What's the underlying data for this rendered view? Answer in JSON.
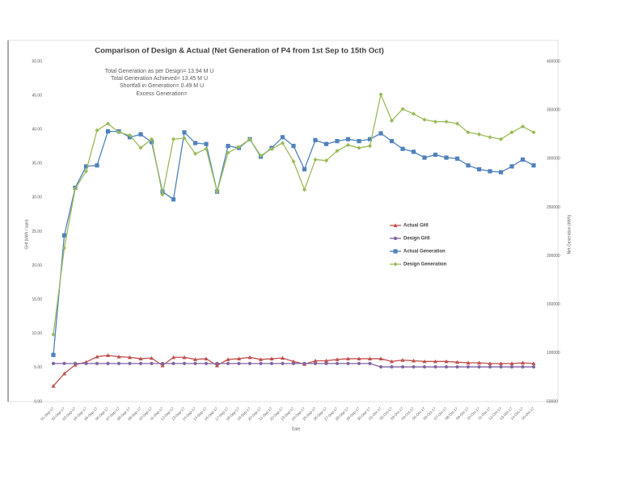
{
  "chart_data": {
    "type": "line",
    "title": "Comparison of Design & Actual (Net Generation of P4 from 1st Sep to 15th Oct)",
    "annotations": [
      "Total Generation as per Design= 13.94 M U",
      "Total Generation Achieved= 13.45 M U",
      "Shortfall in Generation= 0.49 M U",
      "Excess Generation="
    ],
    "x_label": "Date",
    "y_label": "GHI (kWh / sqm)",
    "y2_label": "Net Generation (kWh)",
    "categories": [
      "01-Sep-17",
      "02-Sep-17",
      "03-Sep-17",
      "04-Sep-17",
      "05-Sep-17",
      "06-Sep-17",
      "07-Sep-17",
      "08-Sep-17",
      "09-Sep-17",
      "10-Sep-17",
      "11-Sep-17",
      "12-Sep-17",
      "13-Sep-17",
      "14-Sep-17",
      "15-Sep-17",
      "16-Sep-17",
      "17-Sep-17",
      "18-Sep-17",
      "19-Sep-17",
      "20-Sep-17",
      "21-Sep-17",
      "22-Sep-17",
      "23-Sep-17",
      "24-Sep-17",
      "25-Sep-17",
      "26-Sep-17",
      "27-Sep-17",
      "28-Sep-17",
      "29-Sep-17",
      "30-Sep-17",
      "01-Oct-17",
      "02-Oct-17",
      "03-Oct-17",
      "04-Oct-17",
      "05-Oct-17",
      "06-Oct-17",
      "07-Oct-17",
      "08-Oct-17",
      "09-Oct-17",
      "10-Oct-17",
      "11-Oct-17",
      "12-Oct-17",
      "13-Oct-17",
      "14-Oct-17",
      "15-Oct-17"
    ],
    "ylim": [
      0,
      50
    ],
    "yticks": [
      {
        "value": 0,
        "label": "0.00"
      },
      {
        "value": 5,
        "label": "5.00"
      },
      {
        "value": 10,
        "label": "10.00"
      },
      {
        "value": 15,
        "label": "15.00"
      },
      {
        "value": 20,
        "label": "20.00"
      },
      {
        "value": 25,
        "label": "25.00"
      },
      {
        "value": 30,
        "label": "30.00"
      },
      {
        "value": 35,
        "label": "35.00"
      },
      {
        "value": 40,
        "label": "40.00"
      },
      {
        "value": 45,
        "label": "45.00"
      },
      {
        "value": 50,
        "label": "50.00"
      }
    ],
    "y2lim": [
      50000,
      400000
    ],
    "y2ticks": [
      50000,
      100000,
      150000,
      200000,
      250000,
      300000,
      350000,
      400000
    ],
    "grid": false,
    "legend_position": "right",
    "series": [
      {
        "name": "Actual GHI",
        "color": "#c0504d",
        "marker": "triangle",
        "axis": "y",
        "values": [
          2.3,
          4.1,
          5.4,
          5.8,
          6.6,
          6.8,
          6.6,
          6.5,
          6.3,
          6.4,
          5.3,
          6.5,
          6.5,
          6.2,
          6.3,
          5.3,
          6.2,
          6.3,
          6.5,
          6.2,
          6.3,
          6.4,
          5.9,
          5.5,
          6.0,
          6.0,
          6.2,
          6.3,
          6.3,
          6.3,
          6.3,
          5.9,
          6.1,
          6.0,
          5.9,
          5.9,
          5.9,
          5.8,
          5.7,
          5.7,
          5.6,
          5.6,
          5.6,
          5.7,
          5.6
        ]
      },
      {
        "name": "Design GHI",
        "color": "#8064a2",
        "marker": "circle",
        "axis": "y",
        "values": [
          5.6,
          5.6,
          5.6,
          5.6,
          5.6,
          5.6,
          5.6,
          5.6,
          5.6,
          5.6,
          5.6,
          5.6,
          5.6,
          5.6,
          5.6,
          5.6,
          5.6,
          5.6,
          5.6,
          5.6,
          5.6,
          5.6,
          5.6,
          5.6,
          5.6,
          5.6,
          5.6,
          5.6,
          5.6,
          5.6,
          5.1,
          5.1,
          5.1,
          5.1,
          5.1,
          5.1,
          5.1,
          5.1,
          5.1,
          5.1,
          5.1,
          5.1,
          5.1,
          5.1,
          5.1
        ]
      },
      {
        "name": "Actual Generation",
        "color": "#4f81bd",
        "marker": "square",
        "axis": "y2",
        "values": [
          98000,
          221000,
          270000,
          292000,
          293000,
          328000,
          328000,
          322000,
          325000,
          317000,
          266000,
          258000,
          327000,
          316000,
          315000,
          266000,
          313000,
          311000,
          320000,
          302000,
          311000,
          322000,
          313000,
          289000,
          319000,
          315000,
          318000,
          320000,
          318000,
          320000,
          326000,
          318000,
          310000,
          307000,
          301000,
          304000,
          301000,
          300000,
          293000,
          289000,
          287000,
          286000,
          292000,
          299000,
          293000
        ]
      },
      {
        "name": "Design Generation",
        "color": "#9bbb59",
        "marker": "diamond",
        "axis": "y2",
        "values": [
          119000,
          208000,
          269000,
          287000,
          329000,
          336000,
          327000,
          324000,
          311000,
          320000,
          263000,
          320000,
          321000,
          305000,
          310000,
          266000,
          306000,
          312000,
          320000,
          303000,
          310000,
          316000,
          297000,
          268000,
          299000,
          298000,
          308000,
          314000,
          311000,
          313000,
          366000,
          339000,
          351000,
          346000,
          340000,
          338000,
          338000,
          336000,
          327000,
          325000,
          322000,
          320000,
          327000,
          333000,
          327000
        ]
      }
    ]
  }
}
